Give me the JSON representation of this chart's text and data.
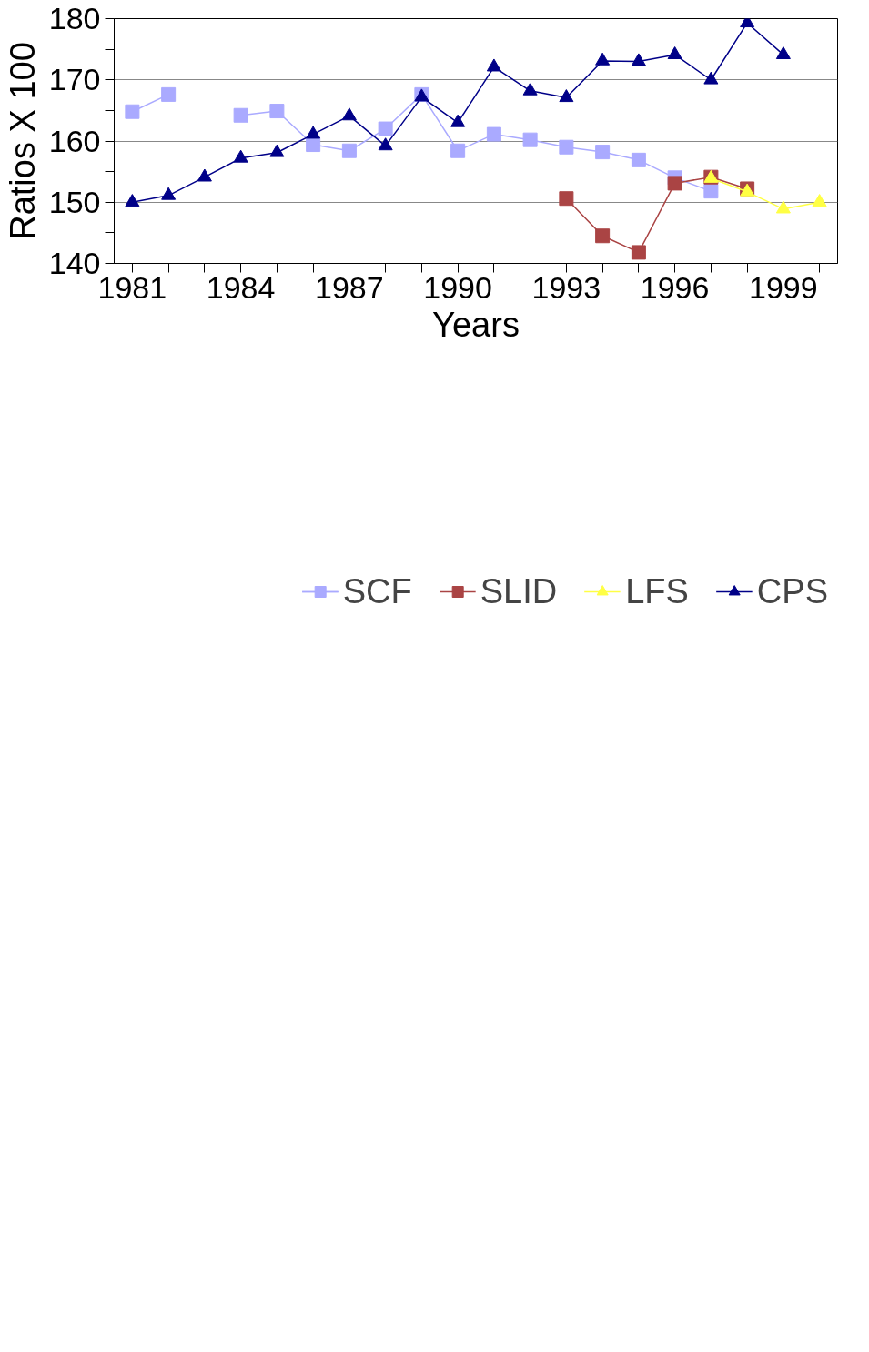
{
  "chart_data": {
    "type": "line",
    "xlabel": "Years",
    "ylabel": "Ratios X 100",
    "x": [
      1981,
      1982,
      1983,
      1984,
      1985,
      1986,
      1987,
      1988,
      1989,
      1990,
      1991,
      1992,
      1993,
      1994,
      1995,
      1996,
      1997,
      1998,
      1999,
      2000
    ],
    "series": [
      {
        "name": "SCF",
        "color": "#aaaaff",
        "marker": "square",
        "values": [
          164.8,
          167.6,
          null,
          164.2,
          164.9,
          159.4,
          158.4,
          162.0,
          167.6,
          158.4,
          161.1,
          160.2,
          159.0,
          158.2,
          156.9,
          154.0,
          151.8,
          null,
          null,
          null
        ]
      },
      {
        "name": "SLID",
        "color": "#aa4444",
        "marker": "square",
        "values": [
          null,
          null,
          null,
          null,
          null,
          null,
          null,
          null,
          null,
          null,
          null,
          null,
          150.6,
          144.5,
          141.8,
          153.1,
          154.1,
          152.2,
          null,
          null
        ]
      },
      {
        "name": "LFS",
        "color": "#ffff44",
        "marker": "triangle",
        "values": [
          null,
          null,
          null,
          null,
          null,
          null,
          null,
          null,
          null,
          null,
          null,
          null,
          null,
          null,
          null,
          null,
          153.9,
          151.7,
          148.9,
          150.0
        ]
      },
      {
        "name": "CPS",
        "color": "#000088",
        "marker": "triangle",
        "values": [
          150.0,
          151.1,
          154.1,
          157.2,
          158.1,
          161.1,
          164.1,
          159.2,
          167.2,
          163.0,
          172.1,
          168.2,
          167.1,
          173.1,
          173.0,
          174.1,
          170.0,
          179.3,
          174.1,
          null
        ]
      }
    ],
    "xlim": [
      1980.5,
      2000.5
    ],
    "xticks": [
      {
        "value": 1981,
        "label": "1981"
      },
      {
        "value": 1982,
        "label": null
      },
      {
        "value": 1983,
        "label": null
      },
      {
        "value": 1984,
        "label": "1984"
      },
      {
        "value": 1985,
        "label": null
      },
      {
        "value": 1986,
        "label": null
      },
      {
        "value": 1987,
        "label": "1987"
      },
      {
        "value": 1988,
        "label": null
      },
      {
        "value": 1989,
        "label": null
      },
      {
        "value": 1990,
        "label": "1990"
      },
      {
        "value": 1991,
        "label": null
      },
      {
        "value": 1992,
        "label": null
      },
      {
        "value": 1993,
        "label": "1993"
      },
      {
        "value": 1994,
        "label": null
      },
      {
        "value": 1995,
        "label": null
      },
      {
        "value": 1996,
        "label": "1996"
      },
      {
        "value": 1997,
        "label": null
      },
      {
        "value": 1998,
        "label": null
      },
      {
        "value": 1999,
        "label": "1999"
      },
      {
        "value": 2000,
        "label": null
      }
    ],
    "ylim": [
      140,
      180
    ],
    "yticks": [
      140,
      {
        "value": 145,
        "label": null
      },
      150,
      {
        "value": 155,
        "label": null
      },
      160,
      {
        "value": 165,
        "label": null
      },
      170,
      {
        "value": 175,
        "label": null
      },
      180
    ],
    "grid": "y",
    "legend": "bottom",
    "line_style": "solid"
  }
}
